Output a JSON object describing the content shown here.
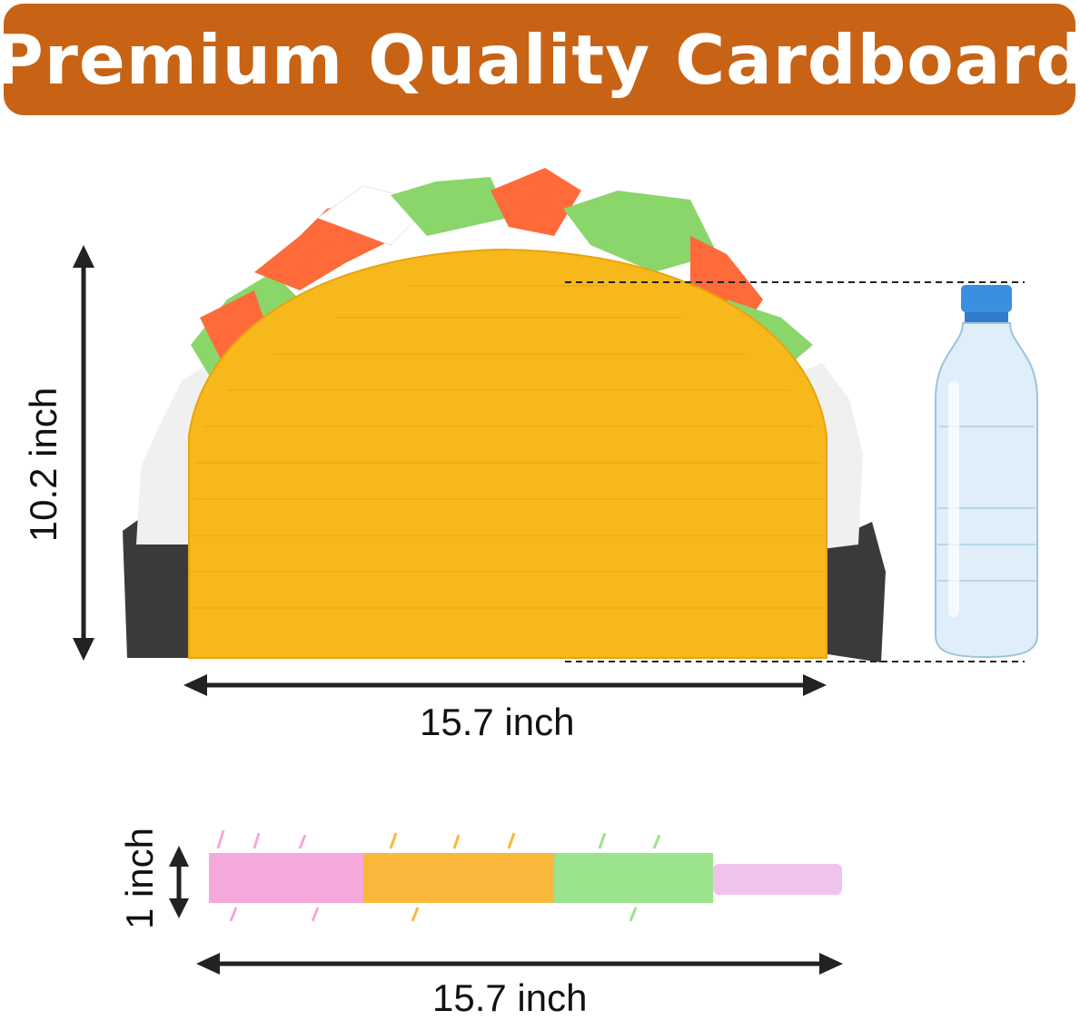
{
  "banner": {
    "title": "Premium Quality Cardboard",
    "color": "#c86315"
  },
  "pinata": {
    "height_label": "10.2 inch",
    "width_label": "15.7 inch",
    "shell_color": "#f7b81c",
    "filling_colors": [
      "#ff6a3a",
      "#8ad66a",
      "#f2f2f2",
      "#3a3a3a"
    ]
  },
  "stick": {
    "diameter_label": "1 inch",
    "length_label": "15.7 inch",
    "colors": [
      "#f5a8dc",
      "#f9b83c",
      "#9be38c",
      "#f0c3ec"
    ]
  },
  "bottle": {
    "cap_color": "#3a8fe0"
  }
}
